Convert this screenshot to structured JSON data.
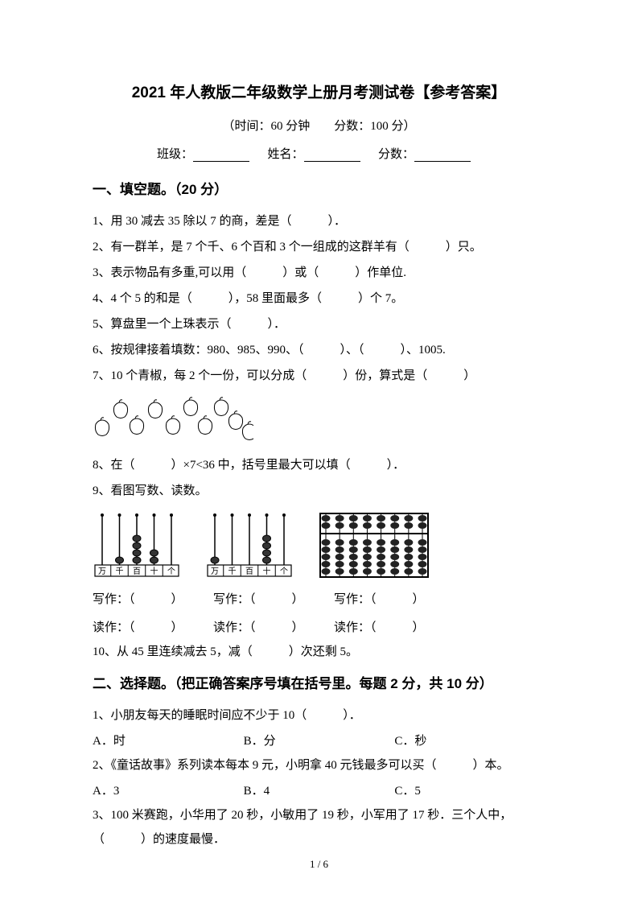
{
  "title": "2021 年人教版二年级数学上册月考测试卷【参考答案】",
  "subtitle": "（时间：60 分钟　　分数：100 分）",
  "info": {
    "class_label": "班级：",
    "name_label": "姓名：",
    "score_label": "分数："
  },
  "section1": {
    "header": "一、填空题。（20 分）",
    "q1": "1、用 30 减去 35 除以 7 的商，差是（　　　）．",
    "q2": "2、有一群羊，是 7 个千、6 个百和 3 个一组成的这群羊有（　　　）只。",
    "q3": "3、表示物品有多重,可以用（　　　）或（　　　）作单位.",
    "q4": "4、4 个 5 的和是（　　　），58 里面最多（　　　）个 7。",
    "q5": "5、算盘里一个上珠表示（　　　）．",
    "q6": "6、按规律接着填数：980、985、990、（　　　）、（　　　）、1005.",
    "q7": "7、10 个青椒，每 2 个一份，可以分成（　　　）份，算式是（　　　）",
    "q8": "8、在（　　　）×7<36 中，括号里最大可以填（　　　）．",
    "q9": "9、看图写数、读数。",
    "write_label": "写作：（　　　）",
    "read_label": "读作：（　　　）",
    "q10": "10、从 45 里连续减去 5，减（　　　）次还剩 5。"
  },
  "section2": {
    "header": "二、选择题。（把正确答案序号填在括号里。每题 2 分，共 10 分）",
    "q1": "1、小朋友每天的睡眠时间应不少于 10（　　　）．",
    "q1a": "A．时",
    "q1b": "B．分",
    "q1c": "C．秒",
    "q2": "2、《童话故事》系列读本每本 9 元，小明拿 40 元钱最多可以买（　　　）本。",
    "q2a": "A．3",
    "q2b": "B．4",
    "q2c": "C．5",
    "q3": "3、100 米赛跑，小华用了 20 秒，小敏用了 19 秒，小军用了 17 秒．三个人中，（　　　）的速度最慢．"
  },
  "footer": "1 / 6",
  "svg": {
    "pepper_count": 10,
    "abacus1": {
      "labels": [
        "万",
        "千",
        "百",
        "十",
        "个"
      ],
      "beads": [
        0,
        1,
        4,
        2,
        0
      ]
    },
    "abacus2": {
      "labels": [
        "万",
        "千",
        "百",
        "十",
        "个"
      ],
      "beads": [
        1,
        0,
        0,
        4,
        0
      ]
    }
  }
}
